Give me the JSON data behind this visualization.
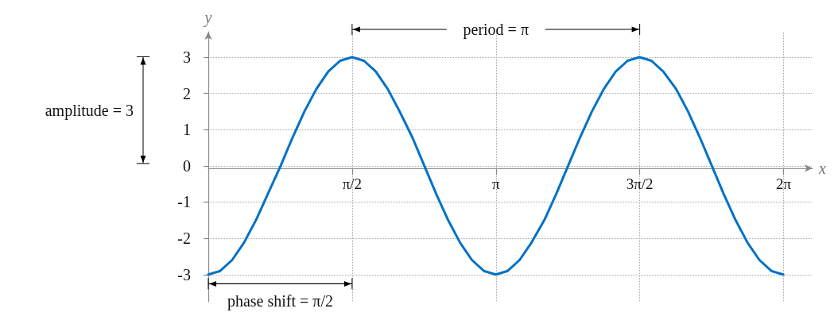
{
  "chart_data": {
    "type": "line",
    "xlabel": "x",
    "ylabel": "y",
    "x": [
      0,
      0.13,
      0.26,
      0.39,
      0.52,
      0.65,
      0.79,
      0.92,
      1.05,
      1.18,
      1.31,
      1.44,
      1.57,
      1.7,
      1.83,
      1.96,
      2.09,
      2.23,
      2.36,
      2.49,
      2.62,
      2.75,
      2.88,
      3.01,
      3.14,
      3.27,
      3.4,
      3.53,
      3.67,
      3.8,
      3.93,
      4.06,
      4.19,
      4.32,
      4.45,
      4.58,
      4.71,
      4.84,
      4.97,
      5.11,
      5.24,
      5.37,
      5.5,
      5.63,
      5.76,
      5.89,
      6.02,
      6.15,
      6.28
    ],
    "series": [
      {
        "color": "#0072c6",
        "values": [
          -3,
          -2.9,
          -2.6,
          -2.12,
          -1.5,
          -0.78,
          0,
          0.78,
          1.5,
          2.12,
          2.6,
          2.9,
          3,
          2.9,
          2.6,
          2.12,
          1.5,
          0.78,
          0,
          -0.78,
          -1.5,
          -2.12,
          -2.6,
          -2.9,
          -3,
          -2.9,
          -2.6,
          -2.12,
          -1.5,
          -0.78,
          0,
          0.78,
          1.5,
          2.12,
          2.6,
          2.9,
          3,
          2.9,
          2.6,
          2.12,
          1.5,
          0.78,
          0,
          -0.78,
          -1.5,
          -2.12,
          -2.6,
          -2.9,
          -3
        ]
      }
    ],
    "xlim": [
      0,
      6.6
    ],
    "ylim": [
      -3.75,
      3.7
    ],
    "xticks": [
      {
        "value": 1.5708,
        "label": "π/2"
      },
      {
        "value": 3.1416,
        "label": "π"
      },
      {
        "value": 4.7124,
        "label": "3π/2"
      },
      {
        "value": 6.2832,
        "label": "2π"
      }
    ],
    "yticks": [
      -3,
      -2,
      -1,
      0,
      1,
      2,
      3
    ],
    "grid": true,
    "marker": "none",
    "line_style": "solid",
    "annotations": [
      "period = π",
      "phase shift = π/2",
      "amplitude = 3"
    ]
  }
}
